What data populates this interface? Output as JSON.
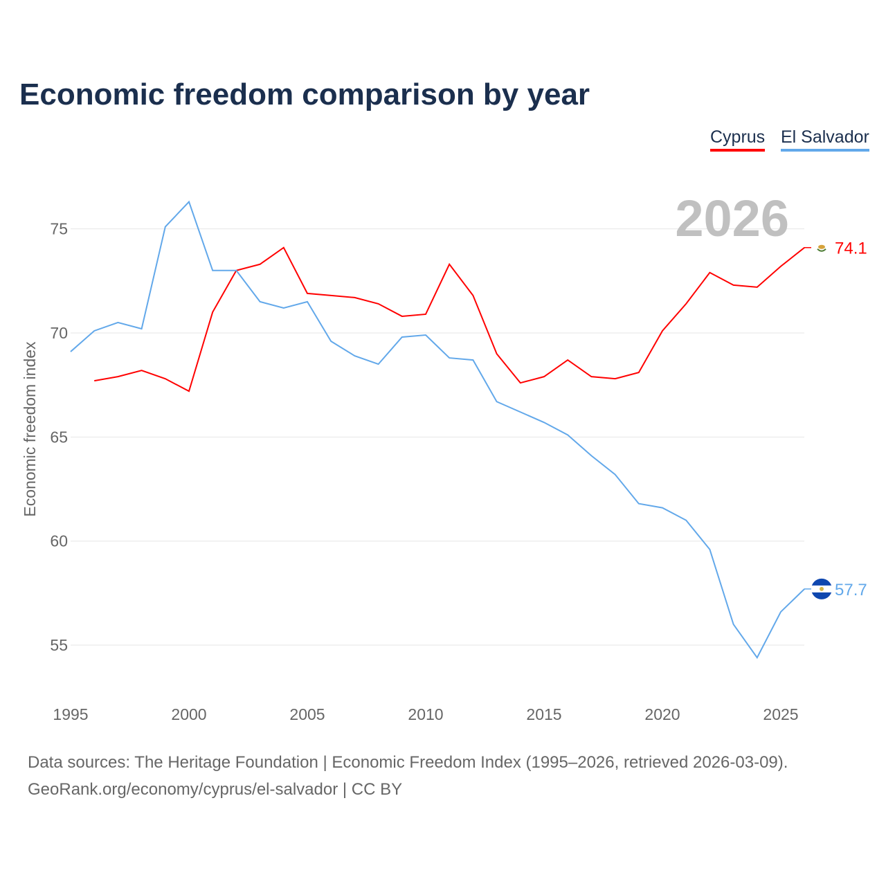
{
  "chart_data": {
    "type": "line",
    "title": "Economic freedom comparison by year",
    "xlabel": "",
    "ylabel": "Economic freedom index",
    "xlim": [
      1995,
      2026
    ],
    "ylim": [
      52.7,
      77
    ],
    "grid": true,
    "legend_position": "top-right",
    "year_label": "2026",
    "x_ticks": [
      1995,
      2000,
      2005,
      2010,
      2015,
      2020,
      2025
    ],
    "y_ticks": [
      55,
      60,
      65,
      70,
      75
    ],
    "series": [
      {
        "name": "Cyprus",
        "color": "#ff0000",
        "end_label": "74.1",
        "start_year": 1996,
        "values": [
          67.7,
          67.9,
          68.2,
          67.8,
          67.2,
          71.0,
          73.0,
          73.3,
          74.1,
          71.9,
          71.8,
          71.7,
          71.4,
          70.8,
          70.9,
          73.3,
          71.8,
          69.0,
          67.6,
          67.9,
          68.7,
          67.9,
          67.8,
          68.1,
          70.1,
          71.4,
          72.9,
          72.3,
          72.2,
          73.2,
          74.1
        ]
      },
      {
        "name": "El Salvador",
        "color": "#62a8ea",
        "end_label": "57.7",
        "start_year": 1995,
        "values": [
          69.1,
          70.1,
          70.5,
          70.2,
          75.1,
          76.3,
          73.0,
          73.0,
          71.5,
          71.2,
          71.5,
          69.6,
          68.9,
          68.5,
          69.8,
          69.9,
          68.8,
          68.7,
          66.7,
          66.2,
          65.7,
          65.1,
          64.1,
          63.2,
          61.8,
          61.6,
          61.0,
          59.6,
          56.0,
          54.4,
          56.6,
          57.7
        ]
      }
    ]
  },
  "footer": {
    "line1": "Data sources: The Heritage Foundation | Economic Freedom Index (1995–2026, retrieved 2026-03-09).",
    "line2": "GeoRank.org/economy/cyprus/el-salvador | CC BY"
  },
  "icons": {
    "cyprus": "cyprus-flag-icon",
    "el_salvador": "el-salvador-flag-icon"
  }
}
